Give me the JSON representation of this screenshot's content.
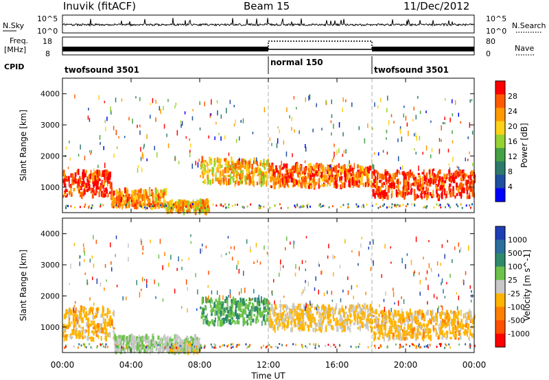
{
  "header": {
    "station": "Inuvik (fitACF)",
    "beam": "Beam 15",
    "date": "11/Dec/2012"
  },
  "noise_panel": {
    "left_label": "N.Sky",
    "left_top": "10^5",
    "left_bottom": "10^0",
    "right_top": "10^5",
    "right_bottom": "10^0",
    "right_label": "N.Search"
  },
  "freq_panel": {
    "left_label_line1": "Freq.",
    "left_label_line2": "[MHz]",
    "left_top": "18",
    "left_bottom": "8",
    "right_top": "80",
    "right_bottom": "0",
    "right_label": "Nave"
  },
  "cpid": {
    "label": "CPID",
    "segments": [
      {
        "name": "twofsound 3501",
        "start_h": 0,
        "end_h": 12
      },
      {
        "name": "normal 150",
        "start_h": 12,
        "end_h": 18
      },
      {
        "name": "twofsound 3501",
        "start_h": 18,
        "end_h": 24
      }
    ]
  },
  "power_panel": {
    "ylabel": "Slant Range [km]",
    "yticks": [
      "4000",
      "3000",
      "2000",
      "1000"
    ],
    "colorbar_label": "Power [dB]",
    "colorbar_ticks": [
      "28",
      "24",
      "20",
      "16",
      "12",
      "8",
      "4"
    ],
    "colorbar_colors": [
      "#ff0000",
      "#ff5a00",
      "#ff9a00",
      "#ffd21a",
      "#96d232",
      "#46a046",
      "#2e7a6a",
      "#1e4fa0",
      "#0000ff"
    ]
  },
  "velocity_panel": {
    "ylabel": "Slant Range [km]",
    "yticks": [
      "4000",
      "3000",
      "2000",
      "1000"
    ],
    "colorbar_label": "Velocity [m s^-1]",
    "colorbar_ticks": [
      "1000",
      "500",
      "100",
      "25",
      "-25",
      "-100",
      "-500",
      "-1000"
    ],
    "colorbar_colors": [
      "#1e3fb4",
      "#2c6e9e",
      "#2f8a6a",
      "#6cc24a",
      "#c8c8c8",
      "#ffb400",
      "#ff8000",
      "#ff5000",
      "#ff0000"
    ]
  },
  "xaxis": {
    "label": "Time UT",
    "ticks": [
      "00:00",
      "04:00",
      "08:00",
      "12:00",
      "16:00",
      "20:00",
      "00:00"
    ]
  },
  "chart_data": {
    "type": "heatmap",
    "title": "Inuvik (fitACF) Beam 15 11/Dec/2012",
    "xlabel": "Time UT",
    "ylabel": "Slant Range [km]",
    "xlim_hours": [
      0,
      24
    ],
    "ylim_km": [
      180,
      4500
    ],
    "series": [
      {
        "name": "Power [dB]",
        "clim": [
          0,
          30
        ],
        "bands": [
          {
            "t": [
              0.0,
              2.8
            ],
            "r": [
              700,
              1500
            ],
            "v": 27
          },
          {
            "t": [
              2.8,
              6.0
            ],
            "r": [
              350,
              900
            ],
            "v": 22
          },
          {
            "t": [
              6.0,
              8.5
            ],
            "r": [
              200,
              550
            ],
            "v": 20
          },
          {
            "t": [
              8.0,
              12.0
            ],
            "r": [
              1100,
              1900
            ],
            "v": 20
          },
          {
            "t": [
              12.0,
              18.0
            ],
            "r": [
              1000,
              1700
            ],
            "v": 24
          },
          {
            "t": [
              18.0,
              24.0
            ],
            "r": [
              650,
              1500
            ],
            "v": 27
          }
        ]
      },
      {
        "name": "Velocity [m s^-1]",
        "clim": [
          -1000,
          1000
        ],
        "bands": [
          {
            "t": [
              0.0,
              3.0
            ],
            "r": [
              600,
              1600
            ],
            "v": -200
          },
          {
            "t": [
              3.0,
              8.0
            ],
            "r": [
              200,
              700
            ],
            "v": 80
          },
          {
            "t": [
              6.0,
              8.0
            ],
            "r": [
              200,
              450
            ],
            "v": 0
          },
          {
            "t": [
              8.0,
              12.0
            ],
            "r": [
              1100,
              1900
            ],
            "v": 300
          },
          {
            "t": [
              12.0,
              18.0
            ],
            "r": [
              900,
              1700
            ],
            "v": -150
          },
          {
            "t": [
              18.0,
              24.0
            ],
            "r": [
              600,
              1500
            ],
            "v": -200
          }
        ]
      }
    ]
  }
}
